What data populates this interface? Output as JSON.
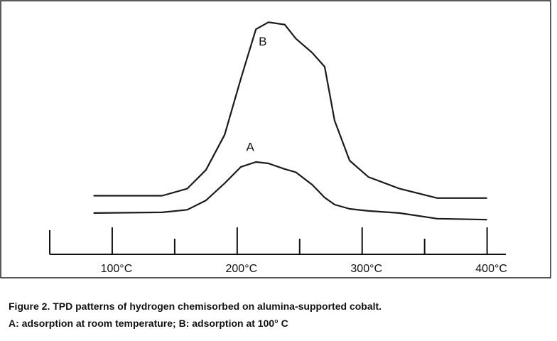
{
  "chart_data": {
    "type": "line",
    "title": "Figure 2.  TPD patterns of hydrogen chemisorbed on alumina-supported cobalt.",
    "subtitle": "A: adsorption at room temperature;  B: adsorption at 100° C",
    "x": [
      85,
      140,
      160,
      175,
      190,
      203,
      215,
      225,
      238,
      247,
      260,
      270,
      278,
      290,
      305,
      330,
      360,
      400
    ],
    "series": [
      {
        "name": "B",
        "color": "#1a1a1a",
        "values": [
          25,
          25,
          28,
          36,
          51,
          75,
          96,
          99,
          98,
          92,
          86,
          80,
          57,
          40,
          33,
          28,
          24,
          24
        ]
      },
      {
        "name": "A",
        "color": "#1a1a1a",
        "values": [
          17.6,
          17.9,
          19,
          23,
          30.3,
          37.3,
          39.4,
          38.8,
          36.4,
          35,
          29.7,
          24.2,
          21.2,
          19.4,
          18.5,
          17.6,
          15.2,
          14.8
        ]
      }
    ],
    "xlim": [
      50,
      415
    ],
    "xticks": [
      {
        "value": 100,
        "label": "100°C"
      },
      {
        "value": 200,
        "label": "200°C"
      },
      {
        "value": 300,
        "label": "300°C"
      },
      {
        "value": 400,
        "label": "400°C"
      }
    ],
    "xticks_minor": [
      150,
      250,
      350
    ],
    "ylim": [
      0,
      100
    ]
  }
}
